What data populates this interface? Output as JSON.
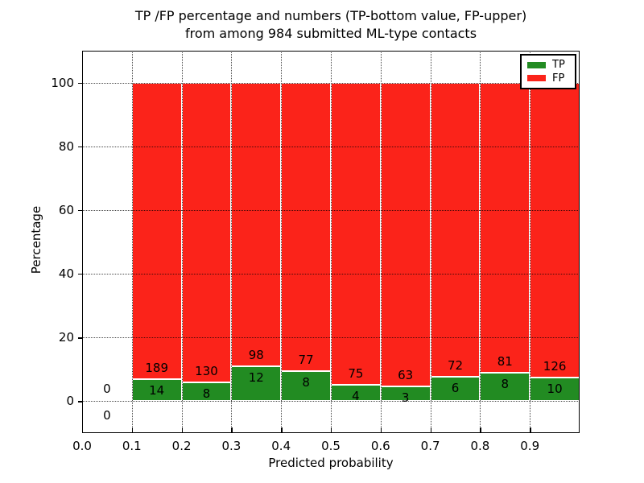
{
  "chart_data": {
    "type": "bar",
    "stacked": true,
    "title_line1": "TP /FP percentage and numbers (TP-bottom value, FP-upper)",
    "title_line2": "from among 984 submitted ML-type contacts",
    "total_contacts": 984,
    "xlabel": "Predicted probability",
    "ylabel": "Percentage",
    "xlim": [
      0.0,
      1.0
    ],
    "ylim": [
      -10,
      110
    ],
    "bin_width": 0.1,
    "bin_left_edges": [
      0.0,
      0.1,
      0.2,
      0.3,
      0.4,
      0.5,
      0.6,
      0.7,
      0.8,
      0.9
    ],
    "series": [
      {
        "name": "TP",
        "color": "#228b22",
        "counts": [
          0,
          14,
          8,
          12,
          8,
          4,
          3,
          6,
          8,
          10
        ]
      },
      {
        "name": "FP",
        "color": "#fb231a",
        "counts": [
          0,
          189,
          130,
          98,
          77,
          75,
          63,
          72,
          81,
          126
        ]
      }
    ],
    "tp_percent_per_bin": [
      0,
      6.9,
      5.8,
      10.9,
      9.4,
      5.1,
      4.5,
      7.7,
      9.0,
      7.4
    ],
    "x_ticks": [
      {
        "v": 0.0,
        "label": "0.0"
      },
      {
        "v": 0.1,
        "label": "0.1"
      },
      {
        "v": 0.2,
        "label": "0.2"
      },
      {
        "v": 0.3,
        "label": "0.3"
      },
      {
        "v": 0.4,
        "label": "0.4"
      },
      {
        "v": 0.5,
        "label": "0.5"
      },
      {
        "v": 0.6,
        "label": "0.6"
      },
      {
        "v": 0.7,
        "label": "0.7"
      },
      {
        "v": 0.8,
        "label": "0.8"
      },
      {
        "v": 0.9,
        "label": "0.9"
      }
    ],
    "y_ticks": [
      {
        "v": 0,
        "label": "0"
      },
      {
        "v": 20,
        "label": "20"
      },
      {
        "v": 40,
        "label": "40"
      },
      {
        "v": 60,
        "label": "60"
      },
      {
        "v": 80,
        "label": "80"
      },
      {
        "v": 100,
        "label": "100"
      }
    ],
    "grid": "dotted, drawn above bars",
    "legend": {
      "position": "upper right"
    }
  }
}
